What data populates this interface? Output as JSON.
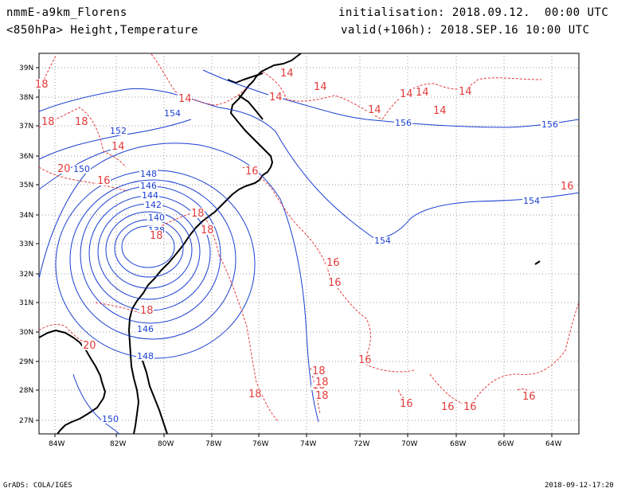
{
  "header": {
    "model": "nmmE-a9km_Florens",
    "init": "initialisation: 2018.09.12.  00:00 UTC",
    "level_vars": "<850hPa> Height,Temperature",
    "valid": "valid(+106h): 2018.SEP.16 10:00 UTC"
  },
  "footer": {
    "credit": "GrADS: COLA/IGES",
    "timestamp": "2018-09-12-17:20"
  },
  "axes": {
    "lat_ticks": [
      "39N",
      "38N",
      "37N",
      "36N",
      "35N",
      "34N",
      "33N",
      "32N",
      "31N",
      "30N",
      "29N",
      "28N",
      "27N"
    ],
    "lon_ticks": [
      "84W",
      "82W",
      "80W",
      "78W",
      "76W",
      "74W",
      "72W",
      "70W",
      "68W",
      "66W",
      "64W"
    ]
  },
  "colors": {
    "height_contour": "#1a3fd0",
    "temperature_contour": "#e33b3b",
    "coastline": "#000000",
    "grid": "#9a9a9a"
  },
  "height_labels": [
    "154",
    "152",
    "150",
    "148",
    "146",
    "144",
    "142",
    "140",
    "138",
    "146",
    "148",
    "150",
    "154",
    "154",
    "156",
    "156"
  ],
  "temperature_labels": [
    "14",
    "14",
    "14",
    "14",
    "14",
    "14",
    "14",
    "14",
    "14",
    "18",
    "16",
    "16",
    "16",
    "16",
    "18",
    "18",
    "18",
    "18",
    "16",
    "18",
    "20",
    "16",
    "20",
    "18",
    "18",
    "18",
    "16",
    "16",
    "16",
    "16",
    "18",
    "18",
    "14",
    "18"
  ]
}
